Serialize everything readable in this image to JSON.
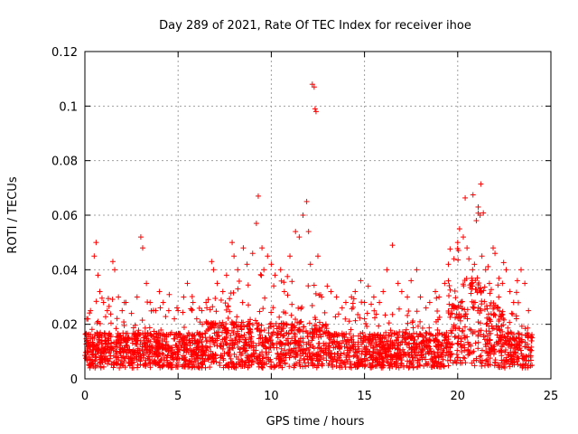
{
  "chart_data": {
    "type": "scatter",
    "title": "Day 289 of 2021, Rate Of TEC Index for receiver ihoe",
    "xlabel": "GPS time / hours",
    "ylabel": "ROTI / TECUs",
    "xlim": [
      0,
      25
    ],
    "ylim": [
      0,
      0.12
    ],
    "x_ticks": [
      0,
      5,
      10,
      15,
      20,
      25
    ],
    "x_tick_labels": [
      "0",
      "5",
      "10",
      "15",
      "20",
      "25"
    ],
    "y_ticks": [
      0,
      0.02,
      0.04,
      0.06,
      0.08,
      0.1,
      0.12
    ],
    "y_tick_labels": [
      "0",
      "0.02",
      "0.04",
      "0.06",
      "0.08",
      "0.1",
      "0.12"
    ],
    "grid": true,
    "marker": "+",
    "color": "#ff0000",
    "series": [
      {
        "x": [
          0.1,
          0.3,
          0.5,
          0.6,
          0.7,
          0.8,
          1.0,
          1.2,
          1.5,
          1.6,
          1.8,
          2.0,
          2.2,
          2.5,
          2.8,
          3.0,
          3.1,
          3.3,
          3.5,
          3.8,
          4.0,
          4.2,
          4.5,
          4.8,
          5.0,
          5.3,
          5.5,
          5.8,
          6.0,
          6.3,
          6.5,
          6.8,
          6.9,
          7.1,
          7.4,
          7.6,
          7.9,
          8.0,
          8.2,
          8.5,
          8.7,
          9.0,
          9.2,
          9.3,
          9.5,
          9.6,
          9.8,
          10.0,
          10.2,
          10.5,
          10.7,
          11.0,
          11.3,
          11.5,
          11.7,
          11.9,
          12.0,
          12.1,
          12.2,
          12.3,
          12.35,
          12.4,
          12.5,
          12.7,
          13.0,
          13.2,
          13.5,
          13.8,
          14.0,
          14.3,
          14.5,
          14.8,
          15.0,
          15.2,
          15.5,
          15.8,
          16.0,
          16.2,
          16.5,
          16.8,
          17.0,
          17.3,
          17.5,
          17.8,
          18.0,
          18.3,
          18.5,
          18.8,
          19.0,
          19.3,
          19.5,
          19.8,
          20.0,
          20.1,
          20.3,
          20.5,
          20.6,
          20.8,
          21.0,
          21.1,
          21.2,
          21.3,
          21.5,
          21.7,
          21.9,
          22.0,
          22.2,
          22.4,
          22.6,
          22.8,
          23.0,
          23.2,
          23.4,
          23.6,
          23.8,
          0.2,
          0.9,
          1.4,
          2.3,
          3.2,
          4.1,
          5.1,
          6.1,
          7.0,
          7.8,
          8.8,
          9.7,
          10.8,
          11.6,
          12.8,
          13.6,
          14.4,
          15.4,
          16.4,
          17.4,
          18.4,
          19.4,
          20.4,
          21.4,
          22.3,
          23.3,
          0.4,
          1.7,
          2.7,
          3.7,
          4.7,
          5.7,
          6.7,
          7.7,
          8.6,
          9.4,
          10.4,
          11.4,
          12.6,
          13.4,
          14.6,
          15.6,
          16.6,
          17.6,
          18.6,
          19.6,
          20.7,
          21.6,
          22.7,
          23.7
        ],
        "y": [
          0.022,
          0.025,
          0.045,
          0.05,
          0.038,
          0.032,
          0.028,
          0.025,
          0.043,
          0.04,
          0.03,
          0.025,
          0.028,
          0.024,
          0.03,
          0.052,
          0.048,
          0.035,
          0.028,
          0.025,
          0.032,
          0.028,
          0.025,
          0.022,
          0.025,
          0.03,
          0.035,
          0.028,
          0.022,
          0.02,
          0.028,
          0.043,
          0.04,
          0.035,
          0.032,
          0.038,
          0.05,
          0.045,
          0.04,
          0.048,
          0.042,
          0.046,
          0.057,
          0.067,
          0.048,
          0.04,
          0.045,
          0.042,
          0.038,
          0.04,
          0.032,
          0.045,
          0.054,
          0.052,
          0.06,
          0.065,
          0.054,
          0.042,
          0.108,
          0.107,
          0.099,
          0.098,
          0.045,
          0.03,
          0.034,
          0.032,
          0.03,
          0.026,
          0.028,
          0.03,
          0.032,
          0.036,
          0.028,
          0.034,
          0.03,
          0.028,
          0.032,
          0.04,
          0.049,
          0.035,
          0.032,
          0.03,
          0.036,
          0.04,
          0.03,
          0.026,
          0.028,
          0.032,
          0.03,
          0.035,
          0.042,
          0.044,
          0.05,
          0.055,
          0.052,
          0.048,
          0.044,
          0.04,
          0.058,
          0.063,
          0.06,
          0.045,
          0.04,
          0.035,
          0.048,
          0.046,
          0.03,
          0.035,
          0.04,
          0.032,
          0.028,
          0.036,
          0.04,
          0.035,
          0.025,
          0.012,
          0.013,
          0.012,
          0.014,
          0.013,
          0.012,
          0.013,
          0.012,
          0.014,
          0.013,
          0.012,
          0.014,
          0.013,
          0.012,
          0.013,
          0.012,
          0.011,
          0.013,
          0.012,
          0.013,
          0.012,
          0.013,
          0.015,
          0.016,
          0.014,
          0.012,
          0.009,
          0.008,
          0.01,
          0.009,
          0.008,
          0.009,
          0.008,
          0.009,
          0.01,
          0.009,
          0.008,
          0.009,
          0.01,
          0.009,
          0.008,
          0.007,
          0.009,
          0.008,
          0.009,
          0.008,
          0.012,
          0.013,
          0.009,
          0.008
        ]
      }
    ]
  }
}
